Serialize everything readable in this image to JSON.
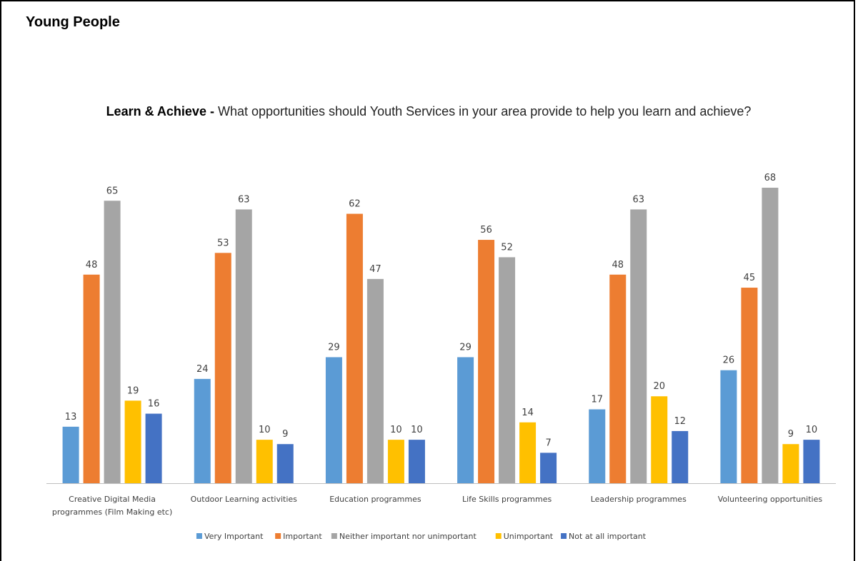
{
  "heading": "Young People",
  "chart_data": {
    "type": "bar",
    "title_bold": "Learn & Achieve -",
    "title_rest": " What opportunities should Youth Services in your area provide to help you learn and achieve?",
    "xlabel": "",
    "ylabel": "",
    "ylim": [
      0,
      70
    ],
    "grid": false,
    "legend_position": "bottom",
    "categories": [
      [
        "Creative Digital Media",
        "programmes (Film Making etc)"
      ],
      [
        "Outdoor Learning activities"
      ],
      [
        "Education programmes"
      ],
      [
        "Life Skills programmes"
      ],
      [
        "Leadership programmes"
      ],
      [
        "Volunteering opportunities"
      ]
    ],
    "series": [
      {
        "name": "Very Important",
        "color": "#5B9BD5",
        "values": [
          13,
          24,
          29,
          29,
          17,
          26
        ]
      },
      {
        "name": "Important",
        "color": "#ED7D31",
        "values": [
          48,
          53,
          62,
          56,
          48,
          45
        ]
      },
      {
        "name": "Neither important nor unimportant",
        "color": "#A5A5A5",
        "values": [
          65,
          63,
          47,
          52,
          63,
          68
        ]
      },
      {
        "name": "Unimportant",
        "color": "#FFC000",
        "values": [
          19,
          10,
          10,
          14,
          20,
          9
        ]
      },
      {
        "name": "Not at all important",
        "color": "#4472C4",
        "values": [
          16,
          9,
          10,
          7,
          12,
          10
        ]
      }
    ]
  }
}
